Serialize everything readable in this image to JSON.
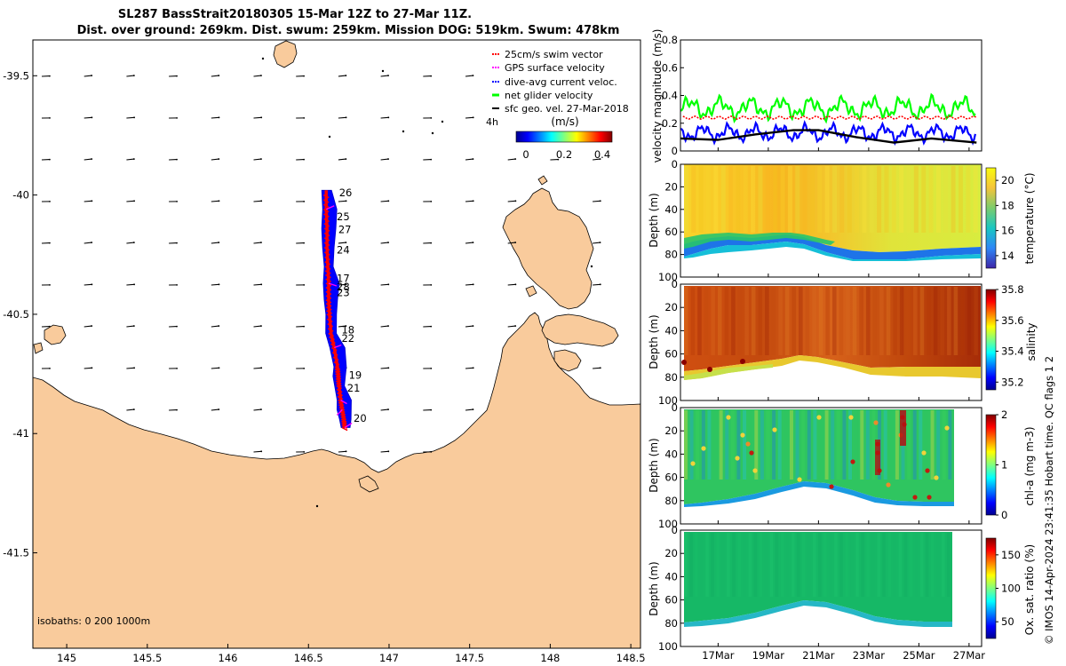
{
  "title": {
    "line1": "SL287 BassStrait20180305 15-Mar 12Z to 27-Mar 11Z.",
    "line2": "Dist. over ground: 269km. Dist. swum: 259km. Mission DOG: 519km. Swum: 478km"
  },
  "copyright": "© IMOS 14-Apr-2024 23:41:35 Hobart time. QC flags 1 2",
  "colors": {
    "land": "#f9cb9c",
    "track": "#ff0000",
    "dive_avg": "#0000ff",
    "net_velocity": "#00ff00",
    "gps_velocity": "#ff00ff"
  },
  "chart_data": [
    {
      "type": "map",
      "x_ticks": [
        "145",
        "145.5",
        "146",
        "146.5",
        "147",
        "147.5",
        "148",
        "148.5"
      ],
      "y_ticks": [
        "-39.5",
        "-40",
        "-40.5",
        "-41",
        "-41.5"
      ],
      "xlim": [
        144.79,
        148.56
      ],
      "ylim": [
        -41.9,
        -39.35
      ],
      "legend": {
        "placement": "top-right",
        "entries": [
          {
            "label": "25cm/s swim vector",
            "color": "#ff0000"
          },
          {
            "label": "GPS surface velocity",
            "color": "#ff00ff"
          },
          {
            "label": "dive-avg current veloc.",
            "color": "#0000ff"
          },
          {
            "label": "net glider velocity",
            "color": "#00ff00"
          },
          {
            "label": "sfc geo. vel. 27-Mar-2018",
            "color": "#000000"
          }
        ],
        "extra": "4h"
      },
      "colorbar": {
        "label": "(m/s)",
        "ticks": [
          "0",
          "0.2",
          "0.4"
        ],
        "range": [
          0,
          0.5
        ]
      },
      "isobaths": "isobaths: 0   200  1000m",
      "track": [
        {
          "x": 146.725,
          "y": -40.975
        },
        {
          "x": 146.72,
          "y": -40.94
        },
        {
          "x": 146.71,
          "y": -40.9
        },
        {
          "x": 146.7,
          "y": -40.86
        },
        {
          "x": 146.69,
          "y": -40.8
        },
        {
          "x": 146.685,
          "y": -40.76
        },
        {
          "x": 146.68,
          "y": -40.72
        },
        {
          "x": 146.66,
          "y": -40.64
        },
        {
          "x": 146.64,
          "y": -40.58
        },
        {
          "x": 146.63,
          "y": -40.5
        },
        {
          "x": 146.625,
          "y": -40.44
        },
        {
          "x": 146.625,
          "y": -40.37
        },
        {
          "x": 146.62,
          "y": -40.3
        },
        {
          "x": 146.615,
          "y": -40.22
        },
        {
          "x": 146.615,
          "y": -40.14
        },
        {
          "x": 146.61,
          "y": -40.06
        },
        {
          "x": 146.61,
          "y": -39.98
        }
      ],
      "day_labels": [
        {
          "label": "26",
          "x": 146.69,
          "y": -39.99
        },
        {
          "label": "25",
          "x": 146.675,
          "y": -40.09
        },
        {
          "label": "27",
          "x": 146.685,
          "y": -40.145
        },
        {
          "label": "24",
          "x": 146.675,
          "y": -40.23
        },
        {
          "label": "17",
          "x": 146.675,
          "y": -40.35
        },
        {
          "label": "28",
          "x": 146.675,
          "y": -40.385
        },
        {
          "label": "23",
          "x": 146.675,
          "y": -40.41
        },
        {
          "label": "18",
          "x": 146.705,
          "y": -40.565
        },
        {
          "label": "22",
          "x": 146.705,
          "y": -40.6
        },
        {
          "label": "19",
          "x": 146.75,
          "y": -40.755
        },
        {
          "label": "21",
          "x": 146.74,
          "y": -40.81
        },
        {
          "label": "20",
          "x": 146.78,
          "y": -40.935
        }
      ]
    },
    {
      "type": "line",
      "ylabel": "velocity magnitude (m/s)",
      "ylim": [
        0,
        0.8
      ],
      "y_ticks": [
        "0",
        "0.2",
        "0.4",
        "0.6",
        "0.8"
      ],
      "x_range_days": [
        15.5,
        27.5
      ],
      "series": [
        {
          "color": "#00ff00",
          "mean": 0.31,
          "amp": 0.09
        },
        {
          "color": "#0000ff",
          "mean": 0.13,
          "amp": 0.07
        },
        {
          "color": "#ff0000",
          "mean": 0.24,
          "amp": 0.0
        },
        {
          "color": "#000000",
          "values_x": [
            15.5,
            17,
            18.5,
            20,
            21,
            22.5,
            24,
            25.5,
            27.3
          ],
          "values_y": [
            0.09,
            0.08,
            0.12,
            0.15,
            0.15,
            0.1,
            0.06,
            0.09,
            0.06
          ]
        }
      ]
    },
    {
      "type": "heatmap",
      "ylabel": "Depth (m)",
      "clabel": "temperature (°C)",
      "y_ticks": [
        "0",
        "20",
        "40",
        "60",
        "80",
        "100"
      ],
      "c_ticks": [
        "14",
        "16",
        "18",
        "20"
      ],
      "crange": [
        13,
        21
      ]
    },
    {
      "type": "heatmap",
      "ylabel": "Depth (m)",
      "clabel": "salinity",
      "y_ticks": [
        "0",
        "20",
        "40",
        "60",
        "80",
        "100"
      ],
      "c_ticks": [
        "35.2",
        "35.4",
        "35.6",
        "35.8"
      ],
      "crange": [
        35.15,
        35.8
      ]
    },
    {
      "type": "heatmap",
      "ylabel": "Depth (m)",
      "clabel": "chl-a (mg m-3)",
      "y_ticks": [
        "0",
        "20",
        "40",
        "60",
        "80",
        "100"
      ],
      "c_ticks": [
        "0",
        "1",
        "2"
      ],
      "crange": [
        0,
        2
      ]
    },
    {
      "type": "heatmap",
      "ylabel": "Depth (m)",
      "clabel": "Ox. sat. ratio (%)",
      "y_ticks": [
        "0",
        "20",
        "40",
        "60",
        "80",
        "100"
      ],
      "c_ticks": [
        "50",
        "100",
        "150"
      ],
      "crange": [
        25,
        175
      ],
      "x_ticks": [
        "17Mar",
        "19Mar",
        "21Mar",
        "23Mar",
        "25Mar",
        "27Mar"
      ]
    }
  ]
}
